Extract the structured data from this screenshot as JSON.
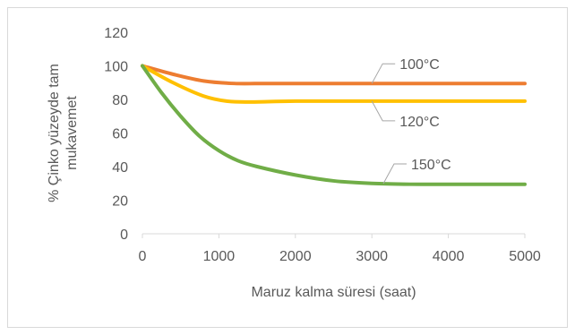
{
  "chart_data": {
    "type": "line",
    "xlabel": "Maruz kalma süresi (saat)",
    "ylabel": [
      "% Çinko yüzeyde tam",
      "mukavemet"
    ],
    "xlim": [
      0,
      5000
    ],
    "ylim": [
      0,
      120
    ],
    "x_ticks": [
      0,
      1000,
      2000,
      3000,
      4000,
      5000
    ],
    "y_ticks": [
      0,
      20,
      40,
      60,
      80,
      100,
      120
    ],
    "grid": false,
    "legend": "inline callouts",
    "series": [
      {
        "name": "100°C",
        "color": "#ED7D31",
        "x": [
          0,
          400,
          800,
          1200,
          1600,
          2000,
          3000,
          4000,
          5000
        ],
        "y": [
          100,
          95,
          91,
          89.5,
          89.5,
          89.5,
          89.5,
          89.5,
          89.5
        ]
      },
      {
        "name": "120°C",
        "color": "#FFC000",
        "x": [
          0,
          400,
          800,
          1100,
          1400,
          2000,
          3000,
          4000,
          5000
        ],
        "y": [
          100,
          90,
          82,
          79,
          78.5,
          79,
          79,
          79,
          79
        ]
      },
      {
        "name": "150°C",
        "color": "#70AD47",
        "x": [
          0,
          250,
          500,
          750,
          1000,
          1250,
          1500,
          2000,
          2500,
          3000,
          3500,
          4000,
          5000
        ],
        "y": [
          100,
          84,
          70,
          58,
          49.5,
          43.5,
          40,
          35,
          31.5,
          30,
          29.5,
          29.5,
          29.5
        ]
      }
    ]
  }
}
